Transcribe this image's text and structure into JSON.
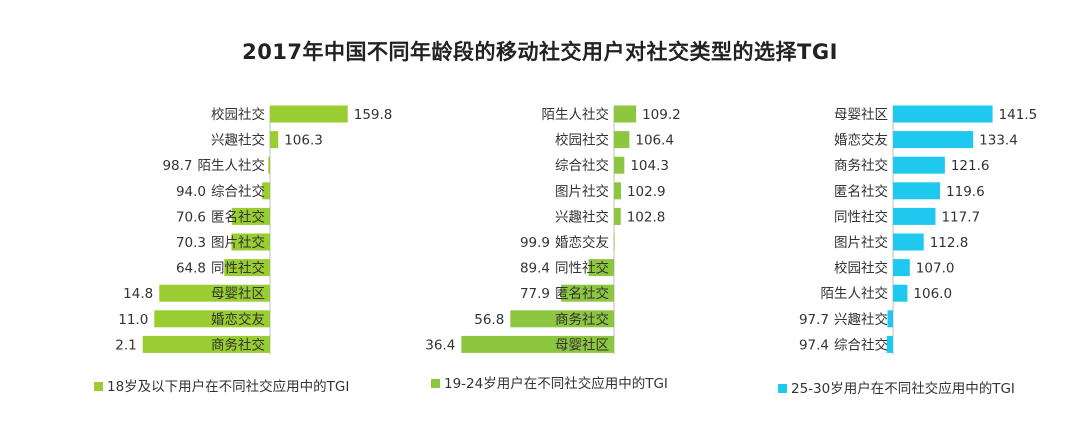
{
  "title": "2017年中国不同年龄段的移动社交用户对社交类型的选择TGI",
  "chart_data": [
    {
      "type": "bar",
      "orientation": "horizontal",
      "series_name": "18岁及以下用户在不同社交应用中的TGI",
      "color": "#9ACD32",
      "baseline": 100,
      "categories": [
        "校园社交",
        "兴趣社交",
        "陌生人社交",
        "综合社交",
        "匿名社交",
        "图片社交",
        "同性社交",
        "母婴社区",
        "婚恋交友",
        "商务社交"
      ],
      "values": [
        159.8,
        106.3,
        98.7,
        94.0,
        70.6,
        70.3,
        64.8,
        14.8,
        11.0,
        2.1
      ],
      "value_labels": [
        "159.8",
        "106.3",
        "98.7",
        "94.0",
        "70.6",
        "70.3",
        "64.8",
        "14.8",
        "11.0",
        "2.1"
      ]
    },
    {
      "type": "bar",
      "orientation": "horizontal",
      "series_name": "19-24岁用户在不同社交应用中的TGI",
      "color": "#8DC63F",
      "baseline": 100,
      "categories": [
        "陌生人社交",
        "校园社交",
        "综合社交",
        "图片社交",
        "兴趣社交",
        "婚恋交友",
        "同性社交",
        "匿名社交",
        "商务社交",
        "母婴社区"
      ],
      "values": [
        109.2,
        106.4,
        104.3,
        102.9,
        102.8,
        99.9,
        89.4,
        77.9,
        56.8,
        36.4
      ],
      "value_labels": [
        "109.2",
        "106.4",
        "104.3",
        "102.9",
        "102.8",
        "99.9",
        "89.4",
        "77.9",
        "56.8",
        "36.4"
      ]
    },
    {
      "type": "bar",
      "orientation": "horizontal",
      "series_name": "25-30岁用户在不同社交应用中的TGI",
      "color": "#1EC8EE",
      "baseline": 100,
      "categories": [
        "母婴社区",
        "婚恋交友",
        "商务社交",
        "匿名社交",
        "同性社交",
        "图片社交",
        "校园社交",
        "陌生人社交",
        "兴趣社交",
        "综合社交"
      ],
      "values": [
        141.5,
        133.4,
        121.6,
        119.6,
        117.7,
        112.8,
        107.0,
        106.0,
        97.7,
        97.4
      ],
      "value_labels": [
        "141.5",
        "133.4",
        "121.6",
        "119.6",
        "117.7",
        "112.8",
        "107.0",
        "106.0",
        "97.7",
        "97.4"
      ]
    }
  ]
}
